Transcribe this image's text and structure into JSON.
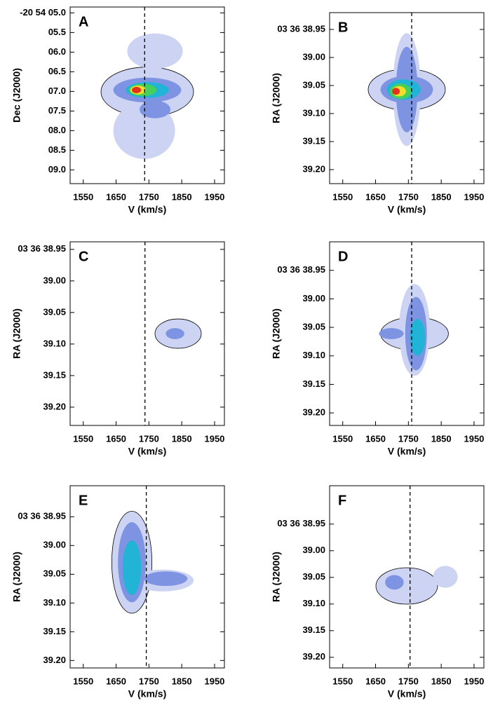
{
  "chart_data": [
    {
      "type": "contour",
      "panel": "A",
      "xlabel": "V (km/s)",
      "ylabel": "Dec (J2000)",
      "xlim": [
        1510,
        1980
      ],
      "xticks": [
        1550,
        1650,
        1750,
        1850,
        1950
      ],
      "ylim": [
        9.35,
        4.85
      ],
      "yticks": [
        {
          "value": 5.0,
          "label": "-20 54 05.0"
        },
        {
          "value": 5.5,
          "label": "05.5"
        },
        {
          "value": 6.0,
          "label": "06.0"
        },
        {
          "value": 6.5,
          "label": "06.5"
        },
        {
          "value": 7.0,
          "label": "07.0"
        },
        {
          "value": 7.5,
          "label": "07.5"
        },
        {
          "value": 8.0,
          "label": "08.0"
        },
        {
          "value": 8.5,
          "label": "08.5"
        },
        {
          "value": 9.0,
          "label": "09.0"
        }
      ],
      "vline": 1737
    },
    {
      "type": "contour",
      "panel": "B",
      "xlabel": "V (km/s)",
      "ylabel": "RA (J2000)",
      "xlim": [
        1510,
        1980
      ],
      "xticks": [
        1550,
        1650,
        1750,
        1850,
        1950
      ],
      "ylim": [
        39.225,
        38.92
      ],
      "yticks": [
        {
          "value": 38.95,
          "label": "03 36 38.95"
        },
        {
          "value": 39.0,
          "label": "39.00"
        },
        {
          "value": 39.05,
          "label": "39.05"
        },
        {
          "value": 39.1,
          "label": "39.10"
        },
        {
          "value": 39.15,
          "label": "39.15"
        },
        {
          "value": 39.2,
          "label": "39.20"
        }
      ],
      "vline": 1760
    },
    {
      "type": "contour",
      "panel": "C",
      "xlabel": "V (km/s)",
      "ylabel": "RA (J2000)",
      "xlim": [
        1510,
        1980
      ],
      "xticks": [
        1550,
        1650,
        1750,
        1850,
        1950
      ],
      "ylim": [
        39.229,
        38.938
      ],
      "yticks": [
        {
          "value": 38.95,
          "label": "03 36 38.95"
        },
        {
          "value": 39.0,
          "label": "39.00"
        },
        {
          "value": 39.05,
          "label": "39.05"
        },
        {
          "value": 39.1,
          "label": "39.10"
        },
        {
          "value": 39.15,
          "label": "39.15"
        },
        {
          "value": 39.2,
          "label": "39.20"
        }
      ],
      "vline": 1738
    },
    {
      "type": "contour",
      "panel": "D",
      "xlabel": "V (km/s)",
      "ylabel": "RA (J2000)",
      "xlim": [
        1510,
        1980
      ],
      "xticks": [
        1550,
        1650,
        1750,
        1850,
        1950
      ],
      "ylim": [
        39.222,
        38.9
      ],
      "yticks": [
        {
          "value": 38.95,
          "label": "03 36 38.95"
        },
        {
          "value": 39.0,
          "label": "39.00"
        },
        {
          "value": 39.05,
          "label": "39.05"
        },
        {
          "value": 39.1,
          "label": "39.10"
        },
        {
          "value": 39.15,
          "label": "39.15"
        },
        {
          "value": 39.2,
          "label": "39.20"
        }
      ],
      "vline": 1760
    },
    {
      "type": "contour",
      "panel": "E",
      "xlabel": "V (km/s)",
      "ylabel": "RA (J2000)",
      "xlim": [
        1510,
        1980
      ],
      "xticks": [
        1550,
        1650,
        1750,
        1850,
        1950
      ],
      "ylim": [
        39.213,
        38.896
      ],
      "yticks": [
        {
          "value": 38.95,
          "label": "03 36 38.95"
        },
        {
          "value": 39.0,
          "label": "39.00"
        },
        {
          "value": 39.05,
          "label": "39.05"
        },
        {
          "value": 39.1,
          "label": "39.10"
        },
        {
          "value": 39.15,
          "label": "39.15"
        },
        {
          "value": 39.2,
          "label": "39.20"
        }
      ],
      "vline": 1742
    },
    {
      "type": "contour",
      "panel": "F",
      "xlabel": "V (km/s)",
      "ylabel": "RA (J2000)",
      "xlim": [
        1510,
        1980
      ],
      "xticks": [
        1550,
        1650,
        1750,
        1850,
        1950
      ],
      "ylim": [
        39.22,
        38.878
      ],
      "yticks": [
        {
          "value": 38.95,
          "label": "03 36 38.95"
        },
        {
          "value": 39.0,
          "label": "39.00"
        },
        {
          "value": 39.05,
          "label": "39.05"
        },
        {
          "value": 39.1,
          "label": "39.10"
        },
        {
          "value": 39.15,
          "label": "39.15"
        },
        {
          "value": 39.2,
          "label": "39.20"
        }
      ],
      "vline": 1755
    }
  ]
}
